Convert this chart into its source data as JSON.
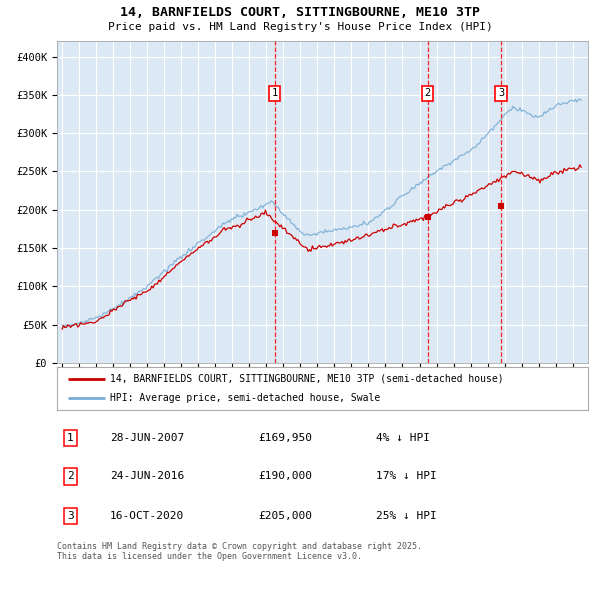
{
  "title1": "14, BARNFIELDS COURT, SITTINGBOURNE, ME10 3TP",
  "title2": "Price paid vs. HM Land Registry's House Price Index (HPI)",
  "background_color": "#dce9f5",
  "grid_color": "#ffffff",
  "hpi_color": "#7aadd4",
  "price_color": "#cc0000",
  "ylim": [
    0,
    420000
  ],
  "yticks": [
    0,
    50000,
    100000,
    150000,
    200000,
    250000,
    300000,
    350000,
    400000
  ],
  "ytick_labels": [
    "£0",
    "£50K",
    "£100K",
    "£150K",
    "£200K",
    "£250K",
    "£300K",
    "£350K",
    "£400K"
  ],
  "transactions": [
    {
      "date_num": 2007.49,
      "price": 169950,
      "label": "1"
    },
    {
      "date_num": 2016.48,
      "price": 190000,
      "label": "2"
    },
    {
      "date_num": 2020.79,
      "price": 205000,
      "label": "3"
    }
  ],
  "legend_line1": "14, BARNFIELDS COURT, SITTINGBOURNE, ME10 3TP (semi-detached house)",
  "legend_line2": "HPI: Average price, semi-detached house, Swale",
  "table": [
    {
      "num": "1",
      "date": "28-JUN-2007",
      "price": "£169,950",
      "hpi": "4% ↓ HPI"
    },
    {
      "num": "2",
      "date": "24-JUN-2016",
      "price": "£190,000",
      "hpi": "17% ↓ HPI"
    },
    {
      "num": "3",
      "date": "16-OCT-2020",
      "price": "£205,000",
      "hpi": "25% ↓ HPI"
    }
  ],
  "footer": "Contains HM Land Registry data © Crown copyright and database right 2025.\nThis data is licensed under the Open Government Licence v3.0."
}
